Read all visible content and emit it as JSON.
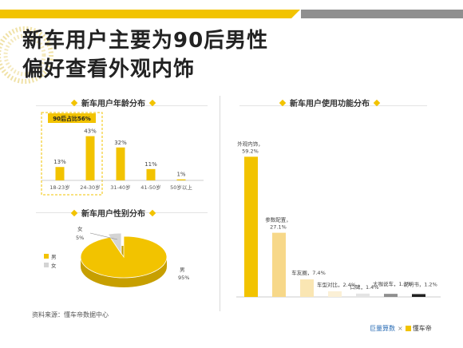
{
  "headline": {
    "line1": "新车用户主要为90后男性",
    "line2": "偏好查看外观内饰"
  },
  "colors": {
    "accent": "#f2c300",
    "gray_bar": "#8f8f8f",
    "light_gray": "#d4d4d4"
  },
  "source_note": "资料来源：懂车帝数据中心",
  "footer": {
    "brand_left": "巨量算数",
    "separator": "×",
    "brand_right": "懂车帝"
  },
  "chart_data": [
    {
      "type": "bar",
      "title": "新车用户年龄分布",
      "categories": [
        "18-23岁",
        "24-30岁",
        "31-40岁",
        "41-50岁",
        "50岁以上"
      ],
      "values": [
        13,
        43,
        32,
        11,
        1
      ],
      "labels": [
        "13%",
        "43%",
        "32%",
        "11%",
        "1%"
      ],
      "annotation": "90后占比56%",
      "highlight_categories": [
        "18-23岁",
        "24-30岁"
      ],
      "ylim": [
        0,
        45
      ]
    },
    {
      "type": "pie",
      "title": "新车用户性别分布",
      "slices": [
        {
          "name": "男",
          "value": 95,
          "label": "男\n95%"
        },
        {
          "name": "女",
          "value": 5,
          "label": "女\n5%"
        }
      ],
      "legend": [
        "男",
        "女"
      ],
      "legend_position": "left"
    },
    {
      "type": "bar",
      "title": "新车用户使用功能分布",
      "categories": [
        "外观内饰",
        "参数配置",
        "车友圈",
        "车型对比",
        "口碑",
        "大咖说车",
        "说明书"
      ],
      "values": [
        59.2,
        27.1,
        7.4,
        2.4,
        1.4,
        1.3,
        1.2
      ],
      "labels": [
        "外观内饰，59.2%",
        "参数配置，27.1%",
        "车友圈，7.4%",
        "车型对比，2.4%",
        "口碑，1.4%",
        "大咖说车，1.3%",
        "说明书，1.2%"
      ],
      "ylim": [
        0,
        60
      ]
    }
  ]
}
